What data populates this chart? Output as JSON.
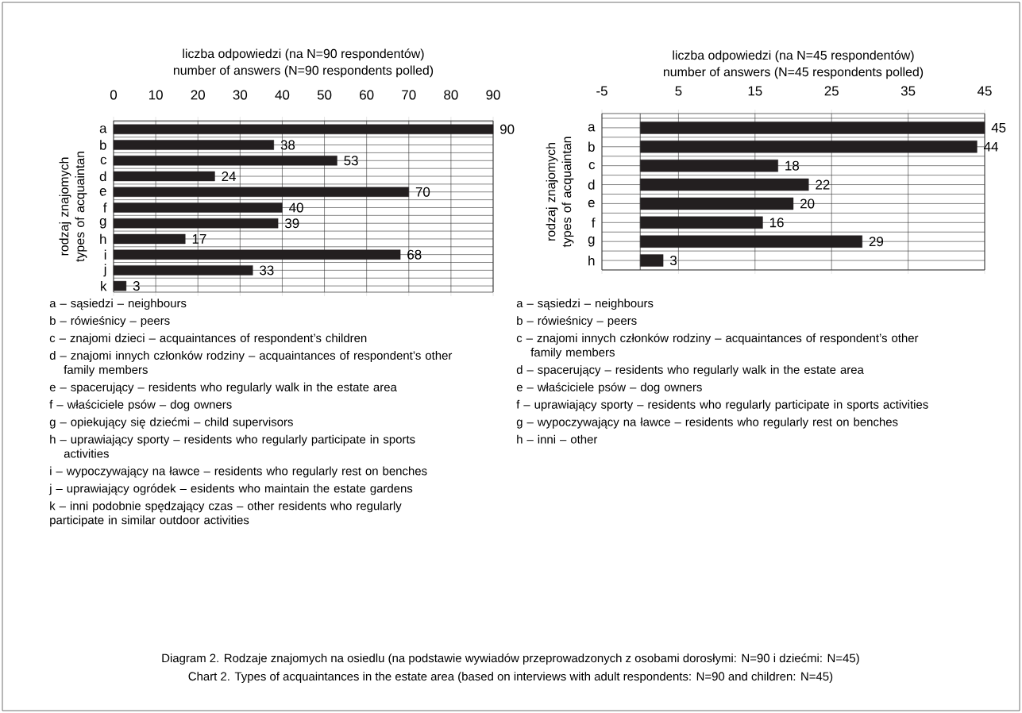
{
  "chart_data": [
    {
      "type": "bar",
      "orientation": "horizontal",
      "title": "liczba odpowiedzi (na N=90 respondentów)",
      "xlabel": "number of answers (N=90 respondents polled)",
      "ylabel": "rodzaj znajomych types of acquaintan",
      "categories": [
        "a",
        "b",
        "c",
        "d",
        "e",
        "f",
        "g",
        "h",
        "i",
        "j",
        "k"
      ],
      "values": [
        90,
        38,
        53,
        24,
        70,
        40,
        39,
        17,
        68,
        33,
        3
      ],
      "color": "#231f20",
      "data_labels": true,
      "grid": true,
      "xlim": [
        0,
        90
      ],
      "xticks": [
        0,
        10,
        20,
        30,
        40,
        50,
        60,
        70,
        80,
        90
      ],
      "annotations": [
        "a – sąsiedzi – neighbours",
        "b – rówieśnicy – peers",
        "c – znajomi dzieci – acquaintances of respondent’s children",
        "d – znajomi innych członków rodziny – acquaintances of respondent’s other family members",
        "e – spacerujący – residents who regularly walk in the estate area",
        "f – właściciele psów – dog owners",
        "g – opiekujący się dziećmi – child supervisors",
        "h – uprawiający sporty – residents who regularly participate in sports activities",
        "i – wypoczywający na ławce – residents who regularly rest on benches",
        "j – uprawiający ogródek – esidents who maintain the estate gardens",
        "k – inni podobnie spędzający czas – other residents who regularly participate in similar outdoor activities"
      ]
    },
    {
      "type": "bar",
      "orientation": "horizontal",
      "title": "liczba odpowiedzi (na N=45 respondentów)",
      "xlabel": "number of answers (N=45 respondents polled)",
      "ylabel": "rodzaj znajomych types of acquaintan",
      "categories": [
        "a",
        "b",
        "c",
        "d",
        "e",
        "f",
        "g",
        "h"
      ],
      "values": [
        45,
        44,
        18,
        22,
        20,
        16,
        29,
        3
      ],
      "color": "#231f20",
      "data_labels": true,
      "grid": true,
      "xlim": [
        -5,
        45
      ],
      "xticks": [
        -5,
        5,
        15,
        25,
        35,
        45
      ],
      "annotations": [
        "a – sąsiedzi – neighbours",
        "b – rówieśnicy – peers",
        "c – znajomi innych członków rodziny – acquaintances of respondent’s other family members",
        "d – spacerujący – residents who regularly walk in the estate area",
        "e – właściciele psów – dog owners",
        "f – uprawiający sporty – residents who regularly participate in sports activities",
        "g – wypoczywający na ławce – residents who regularly rest on benches",
        "h – inni – other"
      ]
    },
    {
      "type": "other",
      "title": "Diagram 2. Rodzaje znajomych na osiedlu (na podstawie wywiadów przeprowadzonych z osobami dorosłymi: N=90 i dziećmi: N=45)",
      "subtitle": "Chart 2. Types of acquaintances in the estate area (based on interviews with adult respondents: N=90 and children: N=45)"
    }
  ]
}
